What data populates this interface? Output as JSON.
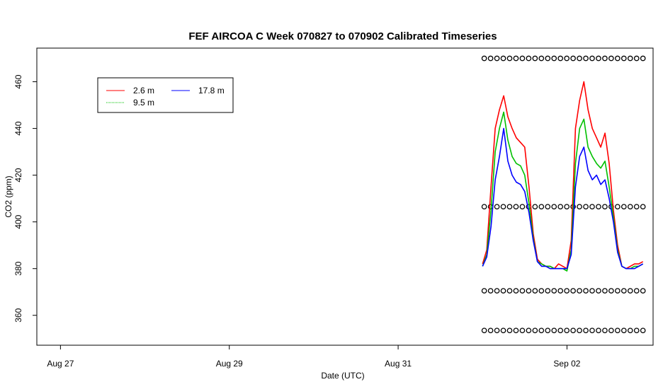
{
  "chart_data": {
    "type": "line",
    "title": "FEF AIRCOA C  Week 070827 to 070902  Calibrated Timeseries",
    "xlabel": "Date (UTC)",
    "ylabel": "CO2 (ppm)",
    "x_unit": "days",
    "x_ticks": [
      {
        "x": 0,
        "label": "Aug 27"
      },
      {
        "x": 2,
        "label": "Aug 29"
      },
      {
        "x": 4,
        "label": "Aug 31"
      },
      {
        "x": 6,
        "label": "Sep 02"
      }
    ],
    "y_ticks": [
      360,
      380,
      400,
      420,
      440,
      460
    ],
    "xlim": [
      -0.28,
      7.02
    ],
    "ylim": [
      347.2,
      474.4
    ],
    "grid": false,
    "legend_position": "top-left",
    "x": [
      5.0,
      5.05,
      5.1,
      5.15,
      5.2,
      5.25,
      5.3,
      5.35,
      5.4,
      5.45,
      5.5,
      5.55,
      5.6,
      5.65,
      5.7,
      5.75,
      5.8,
      5.85,
      5.9,
      5.95,
      6.0,
      6.05,
      6.1,
      6.15,
      6.2,
      6.25,
      6.3,
      6.35,
      6.4,
      6.45,
      6.5,
      6.55,
      6.6,
      6.65,
      6.7,
      6.75,
      6.8,
      6.85,
      6.9
    ],
    "series": [
      {
        "name": "2.6 m",
        "color": "#ff0000",
        "values": [
          382,
          388,
          415,
          440,
          448,
          454,
          445,
          440,
          436,
          434,
          432,
          415,
          395,
          384,
          382,
          381,
          381,
          380,
          382,
          381,
          380,
          392,
          440,
          452,
          460,
          448,
          440,
          436,
          432,
          438,
          425,
          405,
          390,
          381,
          380,
          381,
          382,
          382,
          383
        ]
      },
      {
        "name": "9.5 m",
        "color": "#00c000",
        "values": [
          381,
          386,
          405,
          430,
          440,
          447,
          435,
          428,
          425,
          424,
          420,
          408,
          393,
          383,
          382,
          381,
          381,
          380,
          380,
          380,
          379,
          388,
          425,
          440,
          444,
          432,
          428,
          425,
          423,
          426,
          415,
          402,
          388,
          381,
          380,
          380,
          381,
          381,
          382
        ]
      },
      {
        "name": "17.8 m",
        "color": "#0000ff",
        "values": [
          381,
          385,
          398,
          418,
          428,
          440,
          426,
          420,
          417,
          416,
          413,
          404,
          392,
          383,
          381,
          381,
          380,
          380,
          380,
          380,
          380,
          386,
          415,
          428,
          432,
          422,
          418,
          420,
          416,
          418,
          410,
          400,
          387,
          381,
          380,
          380,
          380,
          381,
          382
        ]
      }
    ],
    "calibration_markers": {
      "symbol": "O",
      "levels": [
        470,
        406.5,
        370.5,
        353.5
      ],
      "x_start": 5.02,
      "x_end": 6.9,
      "count_per_level": 26
    },
    "legend": [
      {
        "label": "2.6 m",
        "color": "#ff0000"
      },
      {
        "label": "9.5 m",
        "color": "#00c000"
      },
      {
        "label": "17.8 m",
        "color": "#0000ff"
      }
    ]
  }
}
